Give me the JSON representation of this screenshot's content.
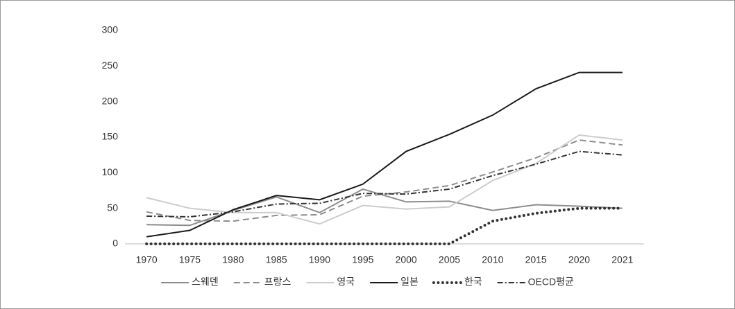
{
  "chart_data": {
    "type": "line",
    "categories": [
      "1970",
      "1975",
      "1980",
      "1985",
      "1990",
      "1995",
      "2000",
      "2005",
      "2010",
      "2015",
      "2020",
      "2021"
    ],
    "series": [
      {
        "name": "스웨덴",
        "color": "#8c8c8c",
        "dash": "solid",
        "values": [
          27,
          26,
          47,
          66,
          44,
          77,
          59,
          60,
          47,
          55,
          53,
          50
        ]
      },
      {
        "name": "프랑스",
        "color": "#8c8c8c",
        "dash": "dashed",
        "values": [
          45,
          33,
          32,
          40,
          41,
          67,
          73,
          82,
          101,
          121,
          146,
          139
        ]
      },
      {
        "name": "영국",
        "color": "#cccccc",
        "dash": "solid",
        "values": [
          65,
          50,
          44,
          44,
          28,
          54,
          49,
          52,
          89,
          113,
          153,
          146
        ]
      },
      {
        "name": "일본",
        "color": "#1a1a1a",
        "dash": "solid",
        "values": [
          10,
          19,
          48,
          68,
          62,
          84,
          130,
          154,
          181,
          218,
          241,
          241
        ]
      },
      {
        "name": "한국",
        "color": "#333333",
        "dash": "dotted",
        "values": [
          0,
          0,
          0,
          0,
          0,
          0,
          0,
          0,
          32,
          43,
          50,
          50
        ]
      },
      {
        "name": "OECD평균",
        "color": "#333333",
        "dash": "dashdot",
        "values": [
          39,
          38,
          45,
          56,
          57,
          71,
          70,
          77,
          96,
          112,
          130,
          125
        ]
      }
    ],
    "ylim": [
      0,
      300
    ],
    "yticks": [
      0,
      50,
      100,
      150,
      200,
      250,
      300
    ],
    "grid": false,
    "legend": "bottom"
  }
}
